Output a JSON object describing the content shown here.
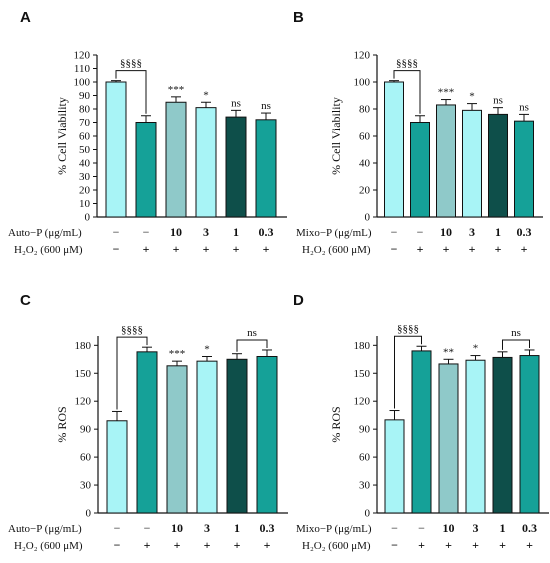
{
  "chart_data": [
    {
      "panel": "A",
      "type": "bar",
      "ylabel": "% Cell Viability",
      "ylim": [
        0,
        120
      ],
      "yticks": [
        0,
        10,
        20,
        30,
        40,
        50,
        60,
        70,
        80,
        90,
        100,
        110,
        120
      ],
      "values": [
        100,
        70,
        85,
        81,
        74,
        72
      ],
      "errors": [
        1,
        5,
        4,
        4,
        5,
        5
      ],
      "colors": [
        "#a8f4f6",
        "#15a198",
        "#8fc9c9",
        "#a8f4f6",
        "#0e4f4a",
        "#15a198"
      ],
      "annotations": [
        "",
        "",
        "***",
        "*",
        "ns",
        "ns"
      ],
      "bracket": {
        "from": 0,
        "to": 1,
        "label": "§§§§"
      },
      "row1_label": "Auto−P (μg/mL)",
      "row1_values": [
        "−",
        "−",
        "10",
        "3",
        "1",
        "0.3"
      ],
      "row2_label": "H₂O₂ (600 μM)",
      "row2_values": [
        "−",
        "+",
        "+",
        "+",
        "+",
        "+"
      ]
    },
    {
      "panel": "B",
      "type": "bar",
      "ylabel": "% Cell Viability",
      "ylim": [
        0,
        120
      ],
      "yticks": [
        0,
        20,
        40,
        60,
        80,
        100,
        120
      ],
      "values": [
        100,
        70,
        83,
        79,
        76,
        71
      ],
      "errors": [
        1,
        5,
        4,
        5,
        5,
        5
      ],
      "colors": [
        "#a8f4f6",
        "#15a198",
        "#8fc9c9",
        "#a8f4f6",
        "#0e4f4a",
        "#15a198"
      ],
      "annotations": [
        "",
        "",
        "***",
        "*",
        "ns",
        "ns"
      ],
      "bracket": {
        "from": 0,
        "to": 1,
        "label": "§§§§"
      },
      "row1_label": "Mixo−P (μg/mL)",
      "row1_values": [
        "−",
        "−",
        "10",
        "3",
        "1",
        "0.3"
      ],
      "row2_label": "H₂O₂ (600 μM)",
      "row2_values": [
        "−",
        "+",
        "+",
        "+",
        "+",
        "+"
      ]
    },
    {
      "panel": "C",
      "type": "bar",
      "ylabel": "% ROS",
      "ylim": [
        0,
        190
      ],
      "yticks": [
        0,
        30,
        60,
        90,
        120,
        150,
        180
      ],
      "values": [
        99,
        173,
        158,
        163,
        165,
        168
      ],
      "errors": [
        10,
        5,
        5,
        5,
        6,
        7
      ],
      "colors": [
        "#a8f4f6",
        "#15a198",
        "#8fc9c9",
        "#a8f4f6",
        "#0e4f4a",
        "#15a198"
      ],
      "annotations": [
        "",
        "",
        "***",
        "*",
        "",
        ""
      ],
      "bracket": {
        "from": 0,
        "to": 1,
        "label": "§§§§"
      },
      "bracket2": {
        "from": 4,
        "to": 5,
        "label": "ns"
      },
      "row1_label": "Auto−P (μg/mL)",
      "row1_values": [
        "−",
        "−",
        "10",
        "3",
        "1",
        "0.3"
      ],
      "row2_label": "H₂O₂ (600 μM)",
      "row2_values": [
        "−",
        "+",
        "+",
        "+",
        "+",
        "+"
      ]
    },
    {
      "panel": "D",
      "type": "bar",
      "ylabel": "% ROS",
      "ylim": [
        0,
        190
      ],
      "yticks": [
        0,
        30,
        60,
        90,
        120,
        150,
        180
      ],
      "values": [
        100,
        174,
        160,
        164,
        167,
        169
      ],
      "errors": [
        10,
        5,
        5,
        5,
        6,
        6
      ],
      "colors": [
        "#a8f4f6",
        "#15a198",
        "#8fc9c9",
        "#a8f4f6",
        "#0e4f4a",
        "#15a198"
      ],
      "annotations": [
        "",
        "",
        "**",
        "*",
        "",
        ""
      ],
      "bracket": {
        "from": 0,
        "to": 1,
        "label": "§§§§"
      },
      "bracket2": {
        "from": 4,
        "to": 5,
        "label": "ns"
      },
      "row1_label": "Mixo−P (μg/mL)",
      "row1_values": [
        "−",
        "−",
        "10",
        "3",
        "1",
        "0.3"
      ],
      "row2_label": "H₂O₂ (600 μM)",
      "row2_values": [
        "−",
        "+",
        "+",
        "+",
        "+",
        "+"
      ]
    }
  ]
}
